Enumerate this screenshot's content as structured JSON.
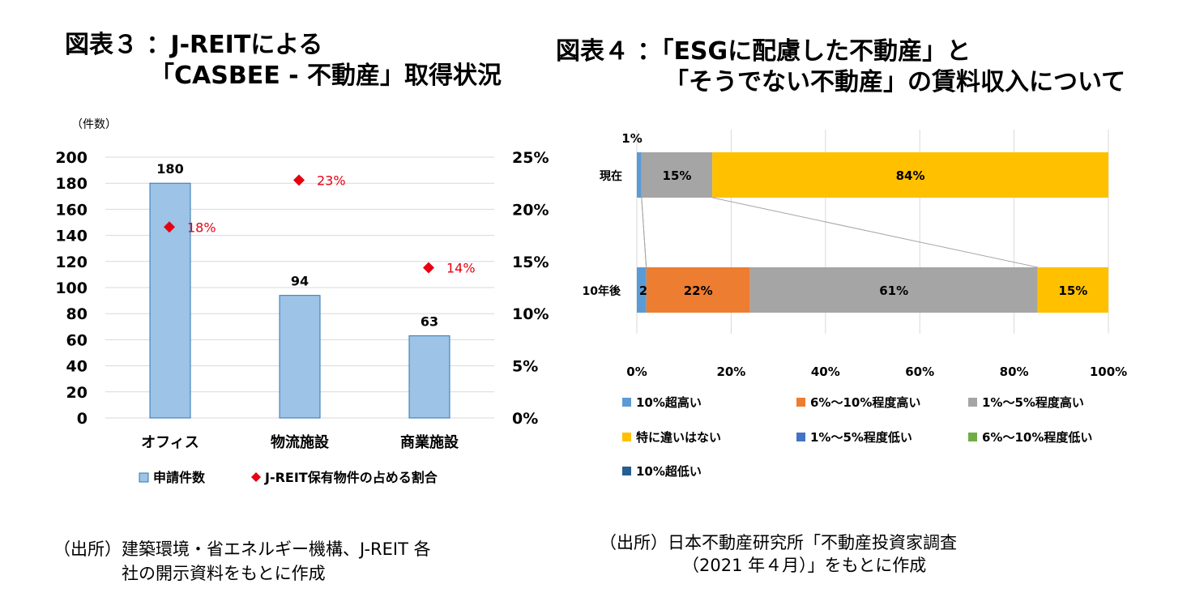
{
  "chart_data": [
    {
      "type": "bar",
      "title_line1": "図表３ ：J-REITによる",
      "title_line2": "「CASBEE - 不動産」取得状況",
      "y_unit_label": "（件数）",
      "categories": [
        "オフィス",
        "物流施設",
        "商業施設"
      ],
      "ylim": [
        0,
        200
      ],
      "y_ticks": [
        "0",
        "20",
        "40",
        "60",
        "80",
        "100",
        "120",
        "140",
        "160",
        "180",
        "200"
      ],
      "y2lim": [
        0,
        25
      ],
      "y2_ticks": [
        "0%",
        "5%",
        "10%",
        "15%",
        "20%",
        "25%"
      ],
      "series": [
        {
          "name": "申請件数",
          "kind": "bar",
          "axis": "left",
          "values": [
            180,
            94,
            63
          ],
          "labels": [
            "180",
            "94",
            "63"
          ],
          "color": "#9DC3E6"
        },
        {
          "name": "J-REIT保有物件の占める割合",
          "kind": "marker",
          "axis": "right",
          "values": [
            18.3,
            22.8,
            14.4
          ],
          "labels": [
            "18%",
            "23%",
            "14%"
          ],
          "color": "#E60012"
        }
      ],
      "grid": true,
      "legend": "bottom",
      "source_line1": "（出所）建築環境・省エネルギー機構、J-REIT 各",
      "source_line2": "社の開示資料をもとに作成"
    },
    {
      "type": "bar",
      "orientation": "horizontal-stacked-100",
      "title_line1": "図表４ ：「ESGに配慮した不動産」と",
      "title_line2": "「そうでない不動産」の賃料収入について",
      "categories": [
        "現在",
        "10年後"
      ],
      "xlim": [
        0,
        100
      ],
      "x_ticks": [
        "0%",
        "20%",
        "40%",
        "60%",
        "80%",
        "100%"
      ],
      "series": [
        {
          "name": "10%超高い",
          "values": [
            1,
            2
          ],
          "color": "#5B9BD5",
          "labels": [
            "1%",
            "2%"
          ]
        },
        {
          "name": "6%～10%程度高い",
          "values": [
            0,
            22
          ],
          "color": "#ED7D31",
          "labels": [
            "",
            "22%"
          ]
        },
        {
          "name": "1%～5%程度高い",
          "values": [
            15,
            61
          ],
          "color": "#A5A5A5",
          "labels": [
            "15%",
            "61%"
          ]
        },
        {
          "name": "特に違いはない",
          "values": [
            84,
            15
          ],
          "color": "#FFC000",
          "labels": [
            "84%",
            "15%"
          ]
        },
        {
          "name": "1%～5%程度低い",
          "values": [
            0,
            0
          ],
          "color": "#4472C4",
          "labels": [
            "",
            ""
          ]
        },
        {
          "name": "6%～10%程度低い",
          "values": [
            0,
            0
          ],
          "color": "#70AD47",
          "labels": [
            "",
            ""
          ]
        },
        {
          "name": "10%超低い",
          "values": [
            0,
            0
          ],
          "color": "#255E91",
          "labels": [
            "",
            ""
          ]
        }
      ],
      "grid": true,
      "legend": "bottom",
      "source_line1": "（出所）日本不動産研究所「不動産投資家調査",
      "source_line2": "（2021 年４月）」をもとに作成"
    }
  ]
}
